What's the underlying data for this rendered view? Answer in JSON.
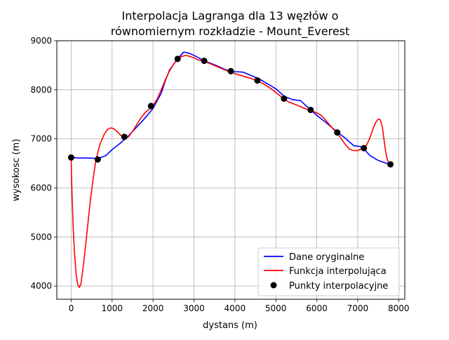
{
  "chart_data": {
    "type": "line",
    "title_line1": "Interpolacja Lagranga dla 13 węzłów o",
    "title_line2": "równomiernym rozkładzie - Mount_Everest",
    "xlabel": "dystans (m)",
    "ylabel": "wysokosc (m)",
    "xlim": [
      -350,
      8150
    ],
    "ylim": [
      3730,
      9000
    ],
    "xticks": [
      0,
      1000,
      2000,
      3000,
      4000,
      5000,
      6000,
      7000,
      8000
    ],
    "yticks": [
      4000,
      5000,
      6000,
      7000,
      8000,
      9000
    ],
    "grid": true,
    "legend_position": "lower right",
    "series": [
      {
        "name": "Dane oryginalne",
        "color": "#0000ff",
        "kind": "line",
        "x": [
          0,
          200,
          400,
          600,
          700,
          850,
          1000,
          1200,
          1400,
          1600,
          1800,
          2000,
          2200,
          2300,
          2400,
          2600,
          2750,
          2900,
          3050,
          3250,
          3500,
          3800,
          4000,
          4200,
          4400,
          4600,
          4800,
          5000,
          5200,
          5400,
          5600,
          5850,
          6000,
          6200,
          6500,
          6700,
          6900,
          7100,
          7300,
          7500,
          7780
        ],
        "y": [
          6620,
          6610,
          6610,
          6600,
          6610,
          6660,
          6780,
          6910,
          7060,
          7240,
          7420,
          7620,
          7930,
          8180,
          8400,
          8630,
          8770,
          8740,
          8680,
          8590,
          8510,
          8400,
          8370,
          8360,
          8290,
          8220,
          8120,
          8020,
          7870,
          7800,
          7780,
          7590,
          7480,
          7350,
          7140,
          7010,
          6860,
          6840,
          6660,
          6560,
          6480
        ]
      },
      {
        "name": "Funkcja interpolująca",
        "color": "#ff0000",
        "kind": "line",
        "x": [
          0,
          20,
          50,
          80,
          120,
          160,
          200,
          240,
          280,
          330,
          400,
          470,
          540,
          600,
          650,
          700,
          750,
          800,
          850,
          900,
          950,
          1000,
          1050,
          1100,
          1200,
          1300,
          1400,
          1500,
          1600,
          1700,
          1800,
          1900,
          2000,
          2100,
          2200,
          2300,
          2400,
          2500,
          2600,
          2700,
          2800,
          2900,
          3000,
          3100,
          3250,
          3400,
          3600,
          3800,
          4000,
          4200,
          4400,
          4550,
          4700,
          4900,
          5100,
          5200,
          5300,
          5450,
          5600,
          5700,
          5850,
          6000,
          6100,
          6200,
          6300,
          6400,
          6500,
          6600,
          6700,
          6800,
          6900,
          7000,
          7050,
          7100,
          7160,
          7200,
          7250,
          7300,
          7350,
          7400,
          7450,
          7500,
          7550,
          7600,
          7640,
          7680,
          7720,
          7760,
          7790
        ],
        "y": [
          6620,
          5900,
          5200,
          4700,
          4250,
          4030,
          3970,
          4050,
          4300,
          4650,
          5200,
          5750,
          6200,
          6540,
          6720,
          6880,
          6980,
          7080,
          7150,
          7200,
          7220,
          7220,
          7200,
          7170,
          7080,
          7020,
          7040,
          7150,
          7290,
          7420,
          7530,
          7600,
          7680,
          7810,
          8000,
          8200,
          8380,
          8520,
          8620,
          8680,
          8700,
          8680,
          8650,
          8610,
          8580,
          8530,
          8460,
          8390,
          8330,
          8280,
          8230,
          8180,
          8120,
          8010,
          7880,
          7810,
          7760,
          7710,
          7660,
          7620,
          7580,
          7530,
          7480,
          7400,
          7300,
          7200,
          7120,
          7000,
          6880,
          6790,
          6760,
          6760,
          6780,
          6800,
          6810,
          6850,
          6930,
          7030,
          7150,
          7260,
          7350,
          7400,
          7390,
          7250,
          7000,
          6750,
          6580,
          6500,
          6480
        ]
      },
      {
        "name": "Punkty interpolacyjne",
        "color": "#000000",
        "kind": "scatter",
        "x": [
          0,
          650,
          1300,
          1950,
          2600,
          3250,
          3900,
          4550,
          5200,
          5850,
          6500,
          7150,
          7800
        ],
        "y": [
          6620,
          6580,
          7040,
          7670,
          8630,
          8590,
          8380,
          8190,
          7820,
          7590,
          7130,
          6810,
          6480
        ]
      }
    ]
  }
}
